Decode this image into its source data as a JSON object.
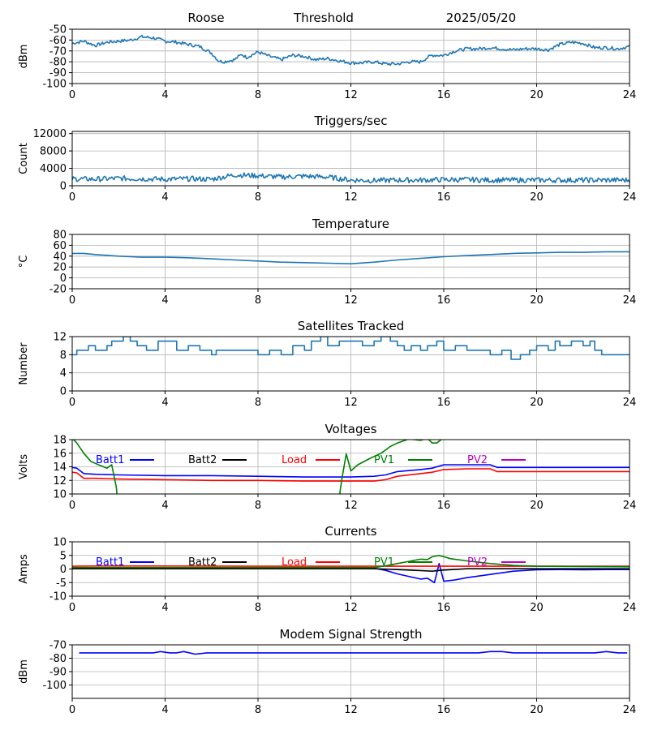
{
  "header": {
    "station": "Roose",
    "threshold_label": "Threshold",
    "date": "2025/05/20"
  },
  "chart_data": [
    {
      "id": "threshold",
      "type": "line",
      "title": "",
      "xlabel": "",
      "ylabel": "dBm",
      "xlim": [
        0,
        24
      ],
      "ylim": [
        -100,
        -50
      ],
      "xticks": [
        0,
        4,
        8,
        12,
        16,
        20,
        24
      ],
      "yticks": [
        -100,
        -90,
        -80,
        -70,
        -60,
        -50
      ],
      "grid": true,
      "series": [
        {
          "color": "#1f77b4",
          "noise": 1.5,
          "x": [
            0,
            0.5,
            1,
            1.5,
            2,
            2.5,
            3,
            3.5,
            4,
            4.5,
            5,
            5.5,
            6,
            6.3,
            6.5,
            7,
            7.3,
            7.5,
            8,
            8.5,
            9,
            9.5,
            10,
            10.5,
            11,
            11.5,
            12,
            12.5,
            13,
            13.5,
            14,
            14.5,
            15,
            15.3,
            15.5,
            16,
            16.5,
            17,
            17.5,
            18,
            18.5,
            19,
            19.5,
            20,
            20.5,
            21,
            21.5,
            22,
            22.5,
            23,
            23.5,
            24
          ],
          "y": [
            -63,
            -61,
            -65,
            -62,
            -61,
            -60,
            -57,
            -58,
            -61,
            -62,
            -64,
            -66,
            -72,
            -79,
            -80,
            -78,
            -73,
            -76,
            -71,
            -75,
            -78,
            -74,
            -75,
            -78,
            -77,
            -79,
            -81,
            -81,
            -80,
            -82,
            -82,
            -80,
            -80,
            -76,
            -74,
            -74,
            -70,
            -68,
            -68,
            -67,
            -68,
            -69,
            -68,
            -68,
            -69,
            -64,
            -62,
            -63,
            -67,
            -67,
            -68,
            -66
          ]
        }
      ]
    },
    {
      "id": "triggers",
      "type": "line",
      "title": "Triggers/sec",
      "xlabel": "",
      "ylabel": "Count",
      "xlim": [
        0,
        24
      ],
      "ylim": [
        0,
        12500
      ],
      "xticks": [
        0,
        4,
        8,
        12,
        16,
        20,
        24
      ],
      "yticks": [
        0,
        4000,
        8000,
        12000
      ],
      "grid": true,
      "series": [
        {
          "color": "#1f77b4",
          "noise": 600,
          "x": [
            0,
            1,
            2,
            3,
            4,
            5,
            6,
            7,
            7.5,
            8,
            9,
            10,
            11,
            12,
            13,
            14,
            15,
            16,
            17,
            18,
            19,
            20,
            21,
            22,
            23,
            24
          ],
          "y": [
            1600,
            1500,
            1700,
            1600,
            1500,
            1600,
            1500,
            2500,
            2400,
            2300,
            2000,
            2200,
            2000,
            1300,
            1200,
            1300,
            1300,
            1400,
            1400,
            1300,
            1300,
            1300,
            1300,
            1300,
            1300,
            1300
          ]
        }
      ]
    },
    {
      "id": "temperature",
      "type": "line",
      "title": "Temperature",
      "xlabel": "",
      "ylabel": "°C",
      "xlim": [
        0,
        24
      ],
      "ylim": [
        -20,
        80
      ],
      "xticks": [
        0,
        4,
        8,
        12,
        16,
        20,
        24
      ],
      "yticks": [
        -20,
        0,
        20,
        40,
        60,
        80
      ],
      "grid": true,
      "series": [
        {
          "color": "#1f77b4",
          "noise": 0,
          "x": [
            0,
            0.5,
            1,
            2,
            3,
            4,
            5,
            6,
            7,
            8,
            9,
            10,
            11,
            12,
            13,
            14,
            15,
            16,
            17,
            18,
            19,
            20,
            21,
            22,
            23,
            24
          ],
          "y": [
            45,
            45,
            43,
            40,
            38,
            38,
            37,
            35,
            33,
            31,
            29,
            28,
            27,
            26,
            29,
            33,
            36,
            39,
            41,
            43,
            45,
            46,
            47,
            47,
            48,
            48
          ]
        }
      ]
    },
    {
      "id": "satellites",
      "type": "line",
      "title": "Satellites Tracked",
      "xlabel": "",
      "ylabel": "Number",
      "xlim": [
        0,
        24
      ],
      "ylim": [
        0,
        12
      ],
      "xticks": [
        0,
        4,
        8,
        12,
        16,
        20,
        24
      ],
      "yticks": [
        0,
        4,
        8,
        12
      ],
      "grid": true,
      "series": [
        {
          "color": "#1f77b4",
          "noise": 0,
          "step": true,
          "x": [
            0,
            0.2,
            0.7,
            1,
            1.5,
            1.7,
            2.2,
            2.5,
            2.8,
            3.2,
            3.7,
            4.5,
            5,
            5.5,
            6,
            6.2,
            6.5,
            7.5,
            8,
            8.5,
            9,
            9.5,
            10,
            10.3,
            10.7,
            11,
            11.5,
            12,
            12.5,
            13,
            13.3,
            13.7,
            14,
            14.3,
            14.6,
            15,
            15.3,
            15.7,
            16,
            16.5,
            17,
            17.5,
            18,
            18.5,
            18.9,
            19.3,
            19.7,
            20,
            20.5,
            20.8,
            21,
            21.5,
            22,
            22.3,
            22.5,
            22.8,
            23.2,
            23.5
          ],
          "y": [
            8,
            9,
            10,
            9,
            10,
            11,
            12,
            11,
            10,
            9,
            11,
            9,
            10,
            9,
            8,
            9,
            9,
            9,
            8,
            9,
            8,
            10,
            9,
            11,
            12,
            10,
            11,
            11,
            10,
            11,
            12,
            11,
            10,
            9,
            10,
            9,
            10,
            11,
            9,
            10,
            9,
            9,
            8,
            9,
            7,
            8,
            9,
            10,
            9,
            11,
            10,
            11,
            10,
            11,
            9,
            8,
            8,
            8
          ]
        }
      ]
    },
    {
      "id": "voltages",
      "type": "line",
      "title": "Voltages",
      "xlabel": "",
      "ylabel": "Volts",
      "xlim": [
        0,
        24
      ],
      "ylim": [
        10,
        18
      ],
      "xticks": [
        0,
        4,
        8,
        12,
        16,
        20,
        24
      ],
      "yticks": [
        10,
        12,
        14,
        16,
        18
      ],
      "grid": true,
      "legend": "top",
      "series": [
        {
          "name": "Batt1",
          "color": "#0000ff",
          "noise": 0,
          "x": [
            0,
            0.2,
            0.5,
            1,
            2,
            4,
            6,
            8,
            10,
            12,
            13,
            13.5,
            14,
            15,
            15.5,
            16,
            17,
            18,
            18.3,
            19,
            20,
            22,
            24
          ],
          "y": [
            13.9,
            13.8,
            13.0,
            12.9,
            12.8,
            12.7,
            12.7,
            12.6,
            12.5,
            12.5,
            12.6,
            12.8,
            13.3,
            13.6,
            13.8,
            14.3,
            14.3,
            14.3,
            13.9,
            13.9,
            13.9,
            13.9,
            13.9
          ]
        },
        {
          "name": "Batt2",
          "color": "#000000",
          "noise": 0,
          "x": [],
          "y": []
        },
        {
          "name": "Load",
          "color": "#ff0000",
          "noise": 0,
          "x": [
            0,
            0.2,
            0.5,
            1,
            2,
            4,
            6,
            8,
            10,
            12,
            13,
            13.5,
            14,
            15,
            15.5,
            16,
            17,
            18,
            18.3,
            19,
            20,
            22,
            24
          ],
          "y": [
            13.2,
            13.1,
            12.3,
            12.3,
            12.2,
            12.1,
            12.0,
            12.0,
            11.9,
            11.9,
            11.9,
            12.1,
            12.6,
            13.0,
            13.2,
            13.6,
            13.7,
            13.7,
            13.3,
            13.3,
            13.3,
            13.3,
            13.3
          ]
        },
        {
          "name": "PV1",
          "color": "#008000",
          "noise": 0,
          "x": [
            0,
            0.2,
            0.5,
            0.8,
            1.2,
            1.5,
            1.7,
            1.9,
            2.0
          ],
          "y": [
            18.2,
            17.5,
            16.0,
            14.8,
            14.2,
            13.8,
            14.3,
            11,
            7
          ]
        },
        {
          "name": "PV1_b",
          "color": "#008000",
          "noise": 0,
          "nolegend": true,
          "x": [
            11.4,
            11.6,
            11.8,
            12,
            12.3,
            12.8,
            13.3,
            13.7,
            14,
            14.5,
            15,
            15.3,
            15.5,
            15.7,
            16
          ],
          "y": [
            7,
            12,
            15.9,
            13.4,
            14.3,
            15.2,
            16.0,
            17.0,
            17.5,
            18.1,
            17.9,
            18.2,
            17.5,
            17.5,
            18.3
          ]
        },
        {
          "name": "PV2",
          "color": "#bf00bf",
          "noise": 0,
          "x": [],
          "y": []
        }
      ]
    },
    {
      "id": "currents",
      "type": "line",
      "title": "Currents",
      "xlabel": "",
      "ylabel": "Amps",
      "xlim": [
        0,
        24
      ],
      "ylim": [
        -10,
        10
      ],
      "xticks": [
        0,
        4,
        8,
        12,
        16,
        20,
        24
      ],
      "yticks": [
        -10,
        -5,
        0,
        5,
        10
      ],
      "grid": true,
      "legend": "top",
      "series": [
        {
          "name": "Batt1",
          "color": "#0000ff",
          "noise": 0,
          "x": [
            0,
            0.3,
            1,
            2,
            4,
            8,
            12,
            13,
            13.5,
            14,
            15,
            15.3,
            15.6,
            15.8,
            16,
            16.5,
            17,
            18,
            19,
            20,
            21,
            22,
            23,
            24
          ],
          "y": [
            0,
            0.5,
            0.3,
            0.2,
            0.2,
            0.2,
            0.2,
            0.3,
            -0.5,
            -1.8,
            -3.7,
            -3.4,
            -5.0,
            2.0,
            -4.5,
            -4.0,
            -3.2,
            -2.0,
            -0.8,
            -0.3,
            -0.2,
            -0.3,
            -0.2,
            -0.2
          ]
        },
        {
          "name": "Batt2",
          "color": "#000000",
          "noise": 0,
          "x": [
            0,
            13,
            14,
            15,
            15.5,
            16,
            17,
            24
          ],
          "y": [
            0.1,
            0.1,
            -0.2,
            -0.6,
            -0.8,
            -0.4,
            0.1,
            0.1
          ]
        },
        {
          "name": "Load",
          "color": "#ff0000",
          "noise": 0,
          "x": [
            0,
            1,
            4,
            8,
            12,
            13,
            16,
            20,
            24
          ],
          "y": [
            1.0,
            1.1,
            1.1,
            1.0,
            1.0,
            1.0,
            1.0,
            1.0,
            1.0
          ]
        },
        {
          "name": "PV1",
          "color": "#008000",
          "noise": 0,
          "x": [
            0,
            13,
            13.5,
            14,
            14.5,
            15,
            15.3,
            15.5,
            15.8,
            16,
            16.3,
            17,
            18,
            19,
            20,
            24
          ],
          "y": [
            0.5,
            0.5,
            1.2,
            2.0,
            2.8,
            3.6,
            3.5,
            4.5,
            5.0,
            4.5,
            3.8,
            3.0,
            2.0,
            1.3,
            1.0,
            0.8
          ]
        },
        {
          "name": "PV2",
          "color": "#bf00bf",
          "noise": 0,
          "x": [],
          "y": []
        }
      ]
    },
    {
      "id": "modem",
      "type": "line",
      "title": "Modem Signal Strength",
      "xlabel": "",
      "ylabel": "dBm",
      "xlim": [
        0,
        24
      ],
      "ylim": [
        -110,
        -70
      ],
      "xticks": [
        0,
        4,
        8,
        12,
        16,
        20,
        24
      ],
      "yticks": [
        -100,
        -90,
        -80,
        -70
      ],
      "grid": true,
      "series": [
        {
          "color": "#0000ff",
          "noise": 0,
          "x": [
            0.3,
            1,
            2,
            3,
            3.5,
            3.8,
            4.2,
            4.5,
            4.8,
            5.3,
            5.8,
            6.5,
            8,
            10,
            12,
            14,
            16,
            17.5,
            18,
            18.5,
            19,
            20,
            21,
            22,
            22.5,
            23,
            23.5,
            23.9
          ],
          "y": [
            -76,
            -76,
            -76,
            -76,
            -76,
            -75,
            -76,
            -76,
            -75,
            -77,
            -76,
            -76,
            -76,
            -76,
            -76,
            -76,
            -76,
            -76,
            -75,
            -75,
            -76,
            -76,
            -76,
            -76,
            -76,
            -75,
            -76,
            -76
          ]
        }
      ]
    }
  ]
}
